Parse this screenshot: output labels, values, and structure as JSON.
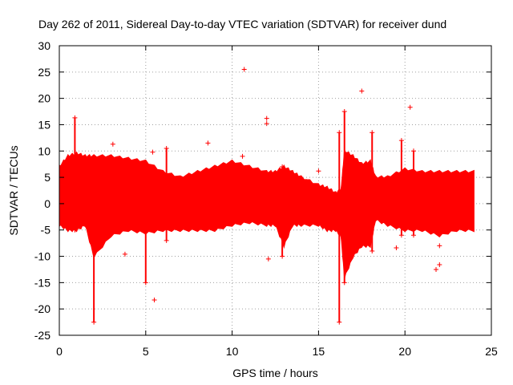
{
  "chart_data": {
    "type": "scatter",
    "title": "Day 262 of 2011, Sidereal Day-to-day VTEC variation (SDTVAR) for receiver dund",
    "xlabel": "GPS time / hours",
    "ylabel": "SDTVAR / TECUs",
    "xlim": [
      0,
      25
    ],
    "ylim": [
      -25,
      30
    ],
    "xticks": [
      0,
      5,
      10,
      15,
      20,
      25
    ],
    "yticks": [
      -25,
      -20,
      -15,
      -10,
      -5,
      0,
      5,
      10,
      15,
      20,
      25,
      30
    ],
    "grid": true,
    "marker": "+",
    "color": "#ff0000",
    "envelope": {
      "name": "SDTVAR dense band (approx. upper / lower extent)",
      "x": [
        0.0,
        0.5,
        1.0,
        1.5,
        2.0,
        3.0,
        4.0,
        5.0,
        6.0,
        7.0,
        8.0,
        9.0,
        10.0,
        11.0,
        12.0,
        12.5,
        13.0,
        13.5,
        14.0,
        15.0,
        15.5,
        16.0,
        16.3,
        16.5,
        17.0,
        17.5,
        18.0,
        18.3,
        19.0,
        20.0,
        21.0,
        22.0,
        23.0,
        24.0
      ],
      "upper": [
        7,
        9,
        9.5,
        9,
        9,
        9,
        8.5,
        8,
        6,
        5,
        6,
        7,
        8,
        7,
        6,
        6,
        7,
        6,
        5,
        3.5,
        3,
        2,
        2.5,
        10,
        9,
        7.5,
        8,
        5,
        5,
        6.5,
        6,
        6,
        6,
        6
      ],
      "lower": [
        -4,
        -5,
        -5,
        -4,
        -10,
        -6,
        -5,
        -5.5,
        -5,
        -5,
        -5,
        -5,
        -4,
        -3.5,
        -4,
        -4,
        -8,
        -4,
        -4,
        -4,
        -5,
        -5,
        -6,
        -14,
        -10,
        -8,
        -8,
        -3,
        -4,
        -5,
        -5,
        -6,
        -5,
        -5
      ]
    },
    "spikes": [
      {
        "x": 0.9,
        "low": -5,
        "high": 16.3
      },
      {
        "x": 2.0,
        "low": -22.5,
        "high": 5
      },
      {
        "x": 5.0,
        "low": -15,
        "high": 5
      },
      {
        "x": 6.2,
        "low": -7,
        "high": 10.5
      },
      {
        "x": 12.9,
        "low": -10,
        "high": 7
      },
      {
        "x": 16.2,
        "low": -22.5,
        "high": 13.5
      },
      {
        "x": 16.5,
        "low": -15,
        "high": 17.5
      },
      {
        "x": 18.1,
        "low": -9,
        "high": 13.5
      },
      {
        "x": 19.8,
        "low": -6,
        "high": 12
      },
      {
        "x": 20.5,
        "low": -6,
        "high": 10
      }
    ],
    "outliers": [
      {
        "x": 10.7,
        "y": 25.5
      },
      {
        "x": 17.5,
        "y": 21.4
      },
      {
        "x": 20.3,
        "y": 18.3
      },
      {
        "x": 12.0,
        "y": 16.2
      },
      {
        "x": 12.0,
        "y": 15.2
      },
      {
        "x": 3.1,
        "y": 11.3
      },
      {
        "x": 8.6,
        "y": 11.5
      },
      {
        "x": 5.4,
        "y": 9.8
      },
      {
        "x": 10.6,
        "y": 9.0
      },
      {
        "x": 15.0,
        "y": 6.2
      },
      {
        "x": 3.8,
        "y": -9.6
      },
      {
        "x": 12.1,
        "y": -10.5
      },
      {
        "x": 5.5,
        "y": -18.3
      },
      {
        "x": 19.5,
        "y": -8.4
      },
      {
        "x": 21.8,
        "y": -12.5
      },
      {
        "x": 22.0,
        "y": -11.6
      },
      {
        "x": 22.0,
        "y": -8.0
      }
    ]
  }
}
